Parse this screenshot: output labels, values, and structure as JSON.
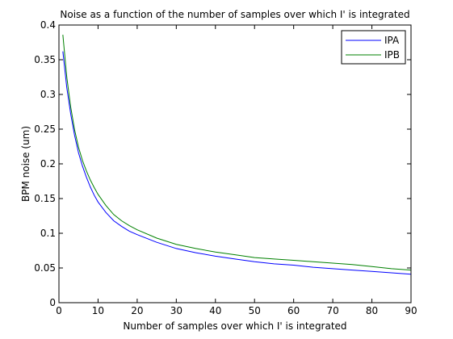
{
  "chart_data": {
    "type": "line",
    "title": "Noise as a function of the number of samples over which I' is integrated",
    "xlabel": "Number of samples over which I' is integrated",
    "ylabel": "BPM noise (um)",
    "xlim": [
      0,
      90
    ],
    "ylim": [
      0,
      0.4
    ],
    "xticks": [
      0,
      10,
      20,
      30,
      40,
      50,
      60,
      70,
      80,
      90
    ],
    "yticks": [
      0,
      0.05,
      0.1,
      0.15,
      0.2,
      0.25,
      0.3,
      0.35,
      0.4
    ],
    "x": [
      1,
      2,
      3,
      4,
      5,
      6,
      7,
      8,
      9,
      10,
      12,
      14,
      16,
      18,
      20,
      25,
      30,
      35,
      40,
      45,
      50,
      55,
      60,
      65,
      70,
      75,
      80,
      85,
      90
    ],
    "series": [
      {
        "name": "IPA",
        "color": "#0000ff",
        "values": [
          0.362,
          0.31,
          0.272,
          0.241,
          0.216,
          0.197,
          0.181,
          0.167,
          0.155,
          0.145,
          0.13,
          0.118,
          0.11,
          0.103,
          0.098,
          0.087,
          0.078,
          0.072,
          0.067,
          0.063,
          0.059,
          0.056,
          0.054,
          0.051,
          0.049,
          0.047,
          0.045,
          0.043,
          0.041
        ]
      },
      {
        "name": "IPB",
        "color": "#008000",
        "values": [
          0.386,
          0.325,
          0.282,
          0.249,
          0.224,
          0.205,
          0.19,
          0.177,
          0.166,
          0.156,
          0.14,
          0.127,
          0.118,
          0.111,
          0.105,
          0.093,
          0.084,
          0.078,
          0.073,
          0.069,
          0.065,
          0.063,
          0.061,
          0.059,
          0.057,
          0.055,
          0.052,
          0.049,
          0.047
        ]
      }
    ],
    "legend_position": "top-right"
  }
}
